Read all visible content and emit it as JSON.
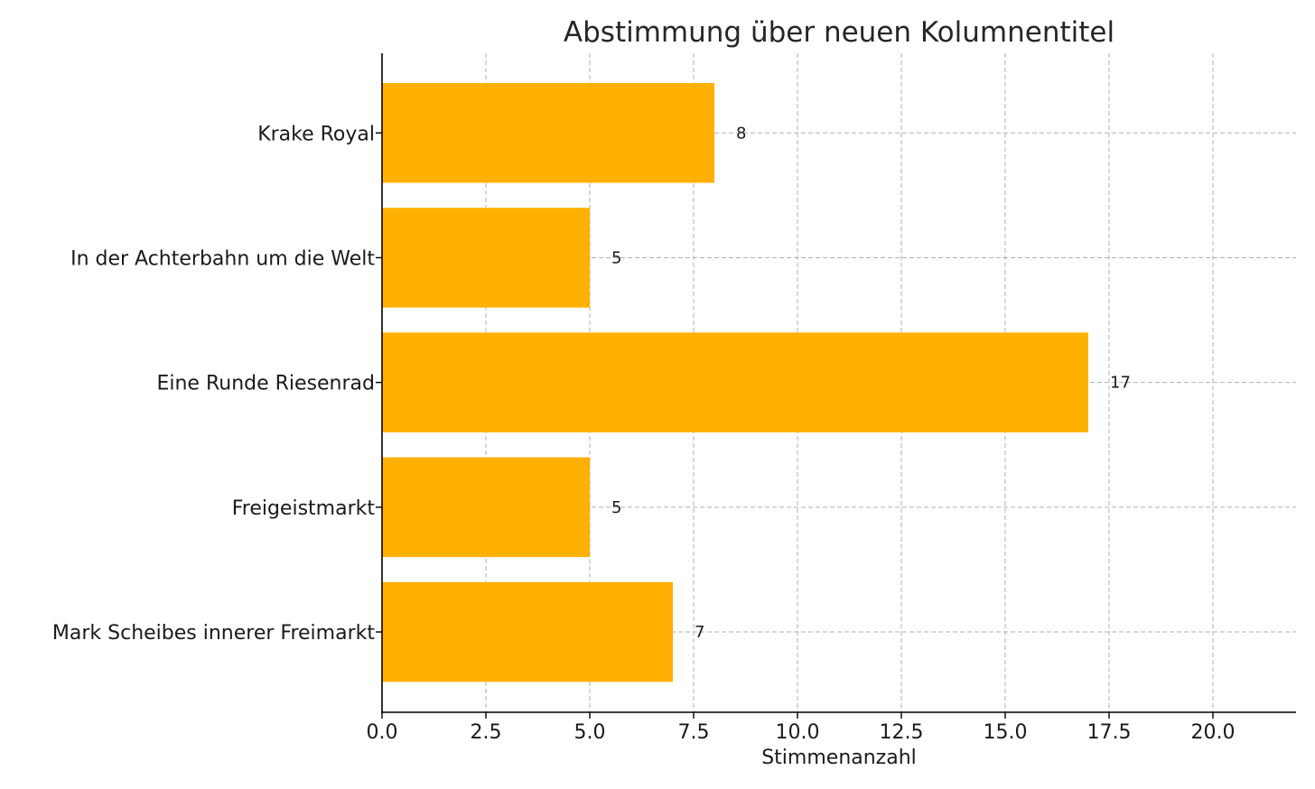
{
  "chart_data": {
    "type": "bar",
    "orientation": "horizontal",
    "title": "Abstimmung über neuen Kolumnentitel",
    "xlabel": "Stimmenanzahl",
    "ylabel": "",
    "categories": [
      "Krake Royal",
      "In der Achterbahn um die Welt",
      "Eine Runde Riesenrad",
      "Freigeistmarkt",
      "Mark Scheibes innerer Freimarkt"
    ],
    "values": [
      8,
      5,
      17,
      5,
      7
    ],
    "data_labels": [
      "8",
      "5",
      "17",
      "5",
      "7"
    ],
    "xlim": [
      0,
      22
    ],
    "xticks": [
      0,
      2.5,
      5,
      7.5,
      10,
      12.5,
      15,
      17.5,
      20
    ],
    "xtick_labels": [
      "0.0",
      "2.5",
      "5.0",
      "7.5",
      "10.0",
      "12.5",
      "15.0",
      "17.5",
      "20.0"
    ],
    "grid": true,
    "grid_style": "dashed",
    "bar_color": "#FFB000",
    "legend": null
  }
}
